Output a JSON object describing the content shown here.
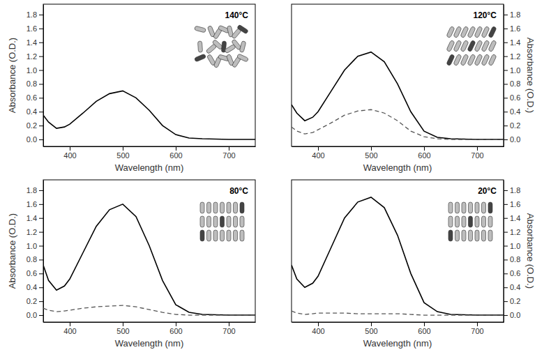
{
  "chart_data": [
    {
      "type": "line",
      "title": "140°C",
      "x_label": "Wavelength (nm)",
      "y_label": "Absorbance (O.D.)",
      "x": [
        350,
        360,
        375,
        390,
        400,
        425,
        450,
        475,
        500,
        525,
        550,
        575,
        600,
        625,
        650,
        700,
        750
      ],
      "series": [
        {
          "color": "#000000",
          "line_style": "solid",
          "values": [
            0.35,
            0.25,
            0.16,
            0.18,
            0.22,
            0.38,
            0.55,
            0.66,
            0.7,
            0.6,
            0.42,
            0.2,
            0.07,
            0.02,
            0.01,
            0.0,
            0.0
          ]
        }
      ],
      "xlim": [
        350,
        750
      ],
      "ylim": [
        -0.1,
        1.95
      ],
      "xticks": [
        400,
        500,
        600,
        700
      ],
      "yticks": [
        {
          "value": 0,
          "label": "0.0"
        },
        0.2,
        0.4,
        0.6,
        0.8,
        {
          "value": 1,
          "label": "1.0"
        },
        1.2,
        1.4,
        1.6,
        1.8
      ]
    },
    {
      "type": "line",
      "title": "120°C",
      "x_label": "Wavelength (nm)",
      "y_label": "Absorbance (O.D.)",
      "x": [
        350,
        360,
        375,
        390,
        400,
        425,
        450,
        475,
        500,
        525,
        550,
        575,
        600,
        625,
        650,
        700,
        750
      ],
      "series": [
        {
          "color": "#000000",
          "line_style": "solid",
          "values": [
            0.5,
            0.38,
            0.27,
            0.32,
            0.4,
            0.7,
            1.0,
            1.2,
            1.26,
            1.12,
            0.8,
            0.4,
            0.12,
            0.03,
            0.01,
            0.0,
            0.0
          ]
        },
        {
          "color": "#555555",
          "line_style": "dashed",
          "values": [
            0.18,
            0.12,
            0.08,
            0.1,
            0.14,
            0.24,
            0.35,
            0.41,
            0.43,
            0.38,
            0.27,
            0.12,
            0.04,
            0.01,
            0.0,
            0.0,
            0.0
          ]
        }
      ],
      "xlim": [
        350,
        750
      ],
      "ylim": [
        -0.1,
        1.95
      ],
      "xticks": [
        400,
        500,
        600,
        700
      ],
      "yticks": [
        {
          "value": 0,
          "label": "0.0"
        },
        0.2,
        0.4,
        0.6,
        0.8,
        {
          "value": 1,
          "label": "1.0"
        },
        1.2,
        1.4,
        1.6,
        1.8
      ]
    },
    {
      "type": "line",
      "title": "80°C",
      "x_label": "Wavelength (nm)",
      "y_label": "Absorbance (O.D.)",
      "x": [
        350,
        360,
        375,
        390,
        400,
        425,
        450,
        475,
        500,
        525,
        550,
        575,
        600,
        625,
        650,
        700,
        750
      ],
      "series": [
        {
          "color": "#000000",
          "line_style": "solid",
          "values": [
            0.72,
            0.5,
            0.36,
            0.42,
            0.52,
            0.9,
            1.28,
            1.52,
            1.6,
            1.42,
            1.0,
            0.5,
            0.15,
            0.04,
            0.01,
            0.0,
            0.0
          ]
        },
        {
          "color": "#555555",
          "line_style": "dashed",
          "values": [
            0.1,
            0.07,
            0.05,
            0.06,
            0.07,
            0.1,
            0.12,
            0.13,
            0.14,
            0.12,
            0.08,
            0.04,
            0.01,
            0.0,
            0.0,
            0.0,
            0.0
          ]
        }
      ],
      "xlim": [
        350,
        750
      ],
      "ylim": [
        -0.1,
        1.95
      ],
      "xticks": [
        400,
        500,
        600,
        700
      ],
      "yticks": [
        {
          "value": 0,
          "label": "0.0"
        },
        0.2,
        0.4,
        0.6,
        0.8,
        {
          "value": 1,
          "label": "1.0"
        },
        1.2,
        1.4,
        1.6,
        1.8
      ]
    },
    {
      "type": "line",
      "title": "20°C",
      "x_label": "Wavelength (nm)",
      "y_label": "Absorbance (O.D.)",
      "x": [
        350,
        360,
        375,
        390,
        400,
        425,
        450,
        475,
        500,
        525,
        550,
        575,
        600,
        625,
        650,
        700,
        750
      ],
      "series": [
        {
          "color": "#000000",
          "line_style": "solid",
          "values": [
            0.72,
            0.52,
            0.4,
            0.46,
            0.56,
            0.98,
            1.4,
            1.63,
            1.7,
            1.55,
            1.15,
            0.6,
            0.18,
            0.05,
            0.01,
            0.0,
            0.0
          ]
        },
        {
          "color": "#555555",
          "line_style": "dashed",
          "values": [
            0.06,
            0.03,
            0.01,
            0.02,
            0.03,
            0.03,
            0.03,
            0.02,
            0.02,
            0.02,
            0.02,
            0.01,
            0.0,
            0.0,
            0.0,
            0.0,
            0.0
          ]
        }
      ],
      "xlim": [
        350,
        750
      ],
      "ylim": [
        -0.1,
        1.95
      ],
      "xticks": [
        400,
        500,
        600,
        700
      ],
      "yticks": [
        {
          "value": 0,
          "label": "0.0"
        },
        0.2,
        0.4,
        0.6,
        0.8,
        {
          "value": 1,
          "label": "1.0"
        },
        1.2,
        1.4,
        1.6,
        1.8
      ]
    }
  ]
}
